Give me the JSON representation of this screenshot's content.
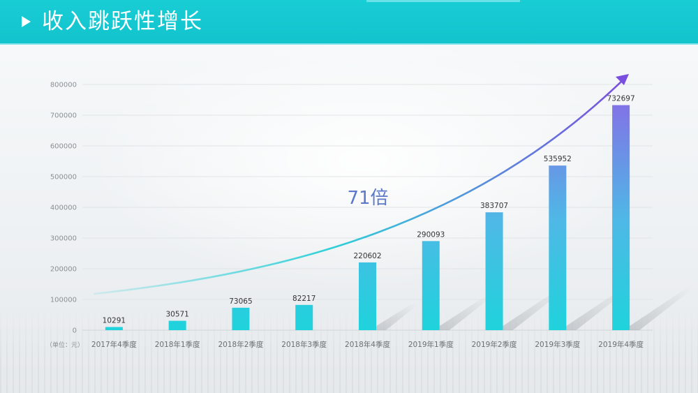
{
  "header": {
    "title": "收入跳跃性增长",
    "accent_color": "#15c8d0",
    "icon": "play-triangle-icon"
  },
  "chart_data": {
    "type": "bar",
    "title": "收入跳跃性增长",
    "unit_label": "（单位：元）",
    "categories": [
      "2017年4季度",
      "2018年1季度",
      "2018年2季度",
      "2018年3季度",
      "2018年4季度",
      "2019年1季度",
      "2019年2季度",
      "2019年3季度",
      "2019年4季度"
    ],
    "values": [
      10291,
      30571,
      73065,
      82217,
      220602,
      290093,
      383707,
      535952,
      732697
    ],
    "data_labels": [
      "10291",
      "30571",
      "73065",
      "82217",
      "220602",
      "290093",
      "383707",
      "535952",
      "732697"
    ],
    "ylim": [
      0,
      800000
    ],
    "yticks": [
      0,
      100000,
      200000,
      300000,
      400000,
      500000,
      600000,
      700000,
      800000
    ],
    "ytick_labels": [
      "0",
      "100000",
      "200000",
      "300000",
      "400000",
      "500000",
      "600000",
      "700000",
      "800000"
    ],
    "grid": true,
    "bar_gradient": {
      "bottom": "#1fd3dc",
      "top": "#8a67e6"
    },
    "trend_arrow": {
      "annotation": "71倍",
      "color_start": "#2fd0d8",
      "color_end": "#7a4fe0"
    }
  }
}
